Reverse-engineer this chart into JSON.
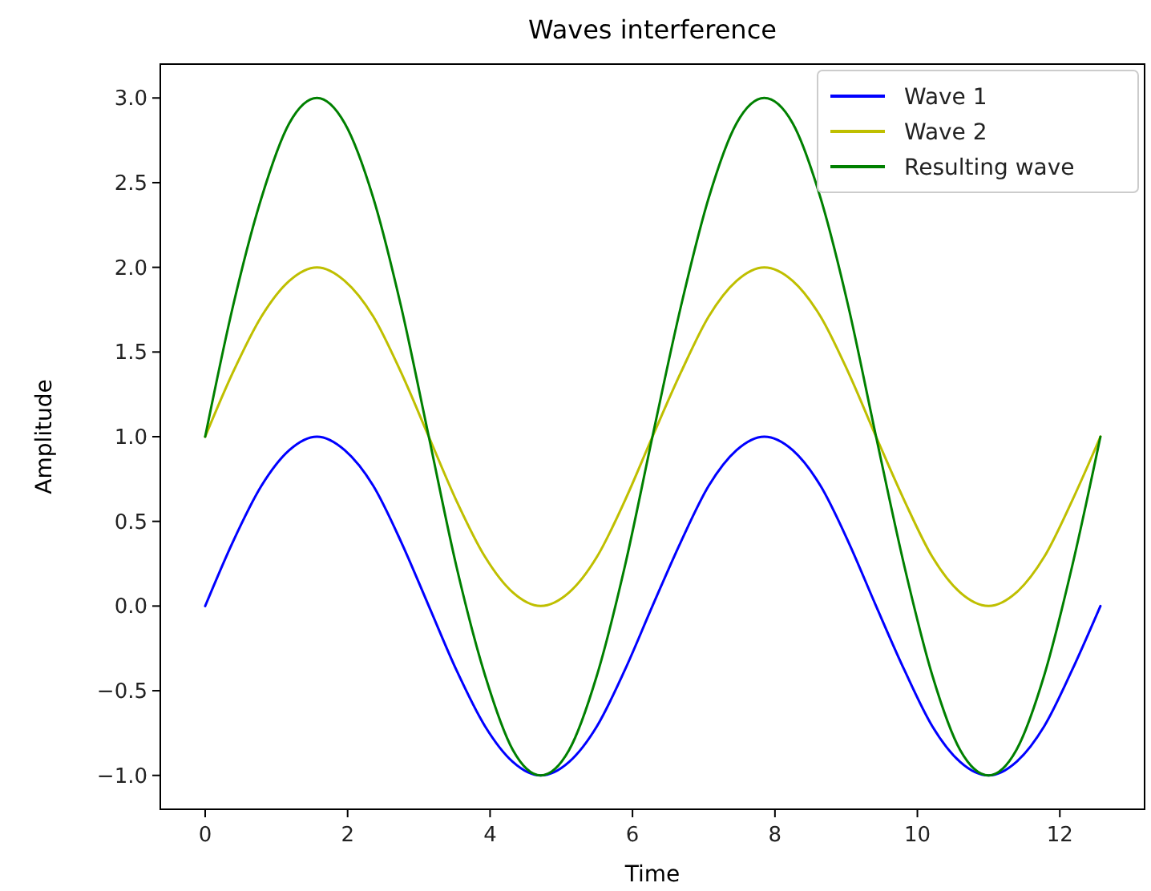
{
  "chart_data": {
    "type": "line",
    "title": "Waves interference",
    "xlabel": "Time",
    "ylabel": "Amplitude",
    "x": [
      0,
      0.39,
      0.79,
      1.18,
      1.57,
      1.96,
      2.36,
      2.75,
      3.14,
      3.53,
      3.93,
      4.32,
      4.71,
      5.11,
      5.5,
      5.89,
      6.28,
      6.68,
      7.07,
      7.46,
      7.85,
      8.25,
      8.64,
      9.03,
      9.42,
      9.82,
      10.21,
      10.6,
      11,
      11.39,
      11.78,
      12.17,
      12.57
    ],
    "series": [
      {
        "name": "Wave 1",
        "color": "#0000ff",
        "values": [
          0,
          0.38,
          0.71,
          0.92,
          1,
          0.92,
          0.71,
          0.38,
          0,
          -0.38,
          -0.71,
          -0.92,
          -1,
          -0.92,
          -0.71,
          -0.38,
          0,
          0.38,
          0.71,
          0.92,
          1,
          0.92,
          0.71,
          0.38,
          0,
          -0.38,
          -0.71,
          -0.92,
          -1,
          -0.92,
          -0.71,
          -0.38,
          0
        ]
      },
      {
        "name": "Wave 2",
        "color": "#bfbf00",
        "values": [
          1,
          1.38,
          1.71,
          1.92,
          2,
          1.92,
          1.71,
          1.38,
          1,
          0.62,
          0.29,
          0.08,
          0,
          0.08,
          0.29,
          0.62,
          1,
          1.38,
          1.71,
          1.92,
          2,
          1.92,
          1.71,
          1.38,
          1,
          0.62,
          0.29,
          0.08,
          0,
          0.08,
          0.29,
          0.62,
          1
        ]
      },
      {
        "name": "Resulting wave",
        "color": "#008000",
        "values": [
          1,
          1.77,
          2.41,
          2.85,
          3,
          2.85,
          2.41,
          1.77,
          1,
          0.23,
          -0.41,
          -0.85,
          -1,
          -0.85,
          -0.41,
          0.23,
          1,
          1.77,
          2.41,
          2.85,
          3,
          2.85,
          2.41,
          1.77,
          1,
          0.23,
          -0.41,
          -0.85,
          -1,
          -0.85,
          -0.41,
          0.23,
          1
        ]
      }
    ],
    "xlim": [
      -0.63,
      13.19
    ],
    "xticks": [
      0,
      2,
      4,
      6,
      8,
      10,
      12
    ],
    "ylim": [
      -1.2,
      3.2
    ],
    "yticks": [
      {
        "value": -1,
        "label": "−1.0"
      },
      {
        "value": -0.5,
        "label": "−0.5"
      },
      {
        "value": 0,
        "label": "0.0"
      },
      {
        "value": 0.5,
        "label": "0.5"
      },
      {
        "value": 1,
        "label": "1.0"
      },
      {
        "value": 1.5,
        "label": "1.5"
      },
      {
        "value": 2,
        "label": "2.0"
      },
      {
        "value": 2.5,
        "label": "2.5"
      },
      {
        "value": 3,
        "label": "3.0"
      }
    ],
    "grid": false,
    "legend": "top right",
    "line_style": "solid",
    "marker": "none"
  }
}
